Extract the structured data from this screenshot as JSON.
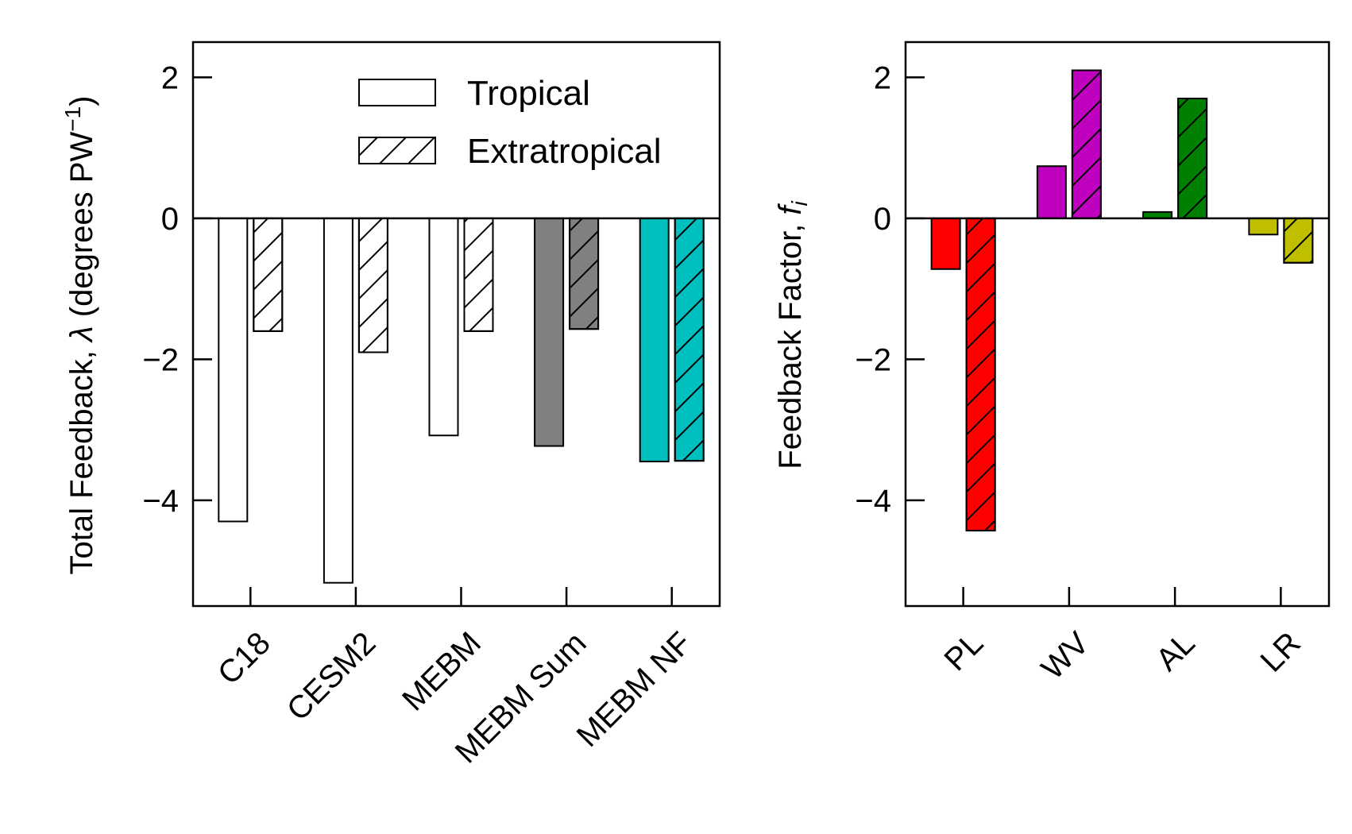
{
  "chart_data": [
    {
      "type": "bar",
      "categories": [
        "C18",
        "CESM2",
        "MEBM",
        "MEBM Sum",
        "MEBM NF"
      ],
      "series": [
        {
          "name": "Tropical",
          "values": [
            -4.3,
            -5.17,
            -3.08,
            -3.23,
            -3.45
          ],
          "hatch": false
        },
        {
          "name": "Extratropical",
          "values": [
            -1.6,
            -1.9,
            -1.6,
            -1.57,
            -3.44
          ],
          "hatch": true
        }
      ],
      "bar_colors": [
        "#ffffff",
        "#ffffff",
        "#ffffff",
        "#808080",
        "#00bfbf"
      ],
      "ylabel_main": "Total Feedback, ",
      "ylabel_symbol": "λ",
      "ylabel_unit_open": " (degrees PW",
      "ylabel_unit_exp": "−1",
      "ylabel_unit_close": ")",
      "ylim": [
        -5.5,
        2.5
      ],
      "yticks": [
        2,
        0,
        -2,
        -4
      ],
      "ytick_labels": [
        "2",
        "0",
        "−2",
        "−4"
      ],
      "legend": {
        "position": "top-right",
        "entries": [
          "Tropical",
          "Extratropical"
        ]
      }
    },
    {
      "type": "bar",
      "categories": [
        "PL",
        "WV",
        "AL",
        "LR"
      ],
      "series": [
        {
          "name": "Tropical",
          "values": [
            -0.72,
            0.74,
            0.09,
            -0.23
          ],
          "hatch": false
        },
        {
          "name": "Extratropical",
          "values": [
            -4.43,
            2.1,
            1.7,
            -0.63
          ],
          "hatch": true
        }
      ],
      "bar_colors": [
        "#ff0000",
        "#bf00bf",
        "#008000",
        "#bfbf00"
      ],
      "ylabel_main": "Feedback Factor, ",
      "ylabel_symbol": "f",
      "ylabel_sub": "i",
      "ylim": [
        -5.5,
        2.5
      ],
      "yticks": [
        2,
        0,
        -2,
        -4
      ],
      "ytick_labels": [
        "2",
        "0",
        "−2",
        "−4"
      ]
    }
  ]
}
